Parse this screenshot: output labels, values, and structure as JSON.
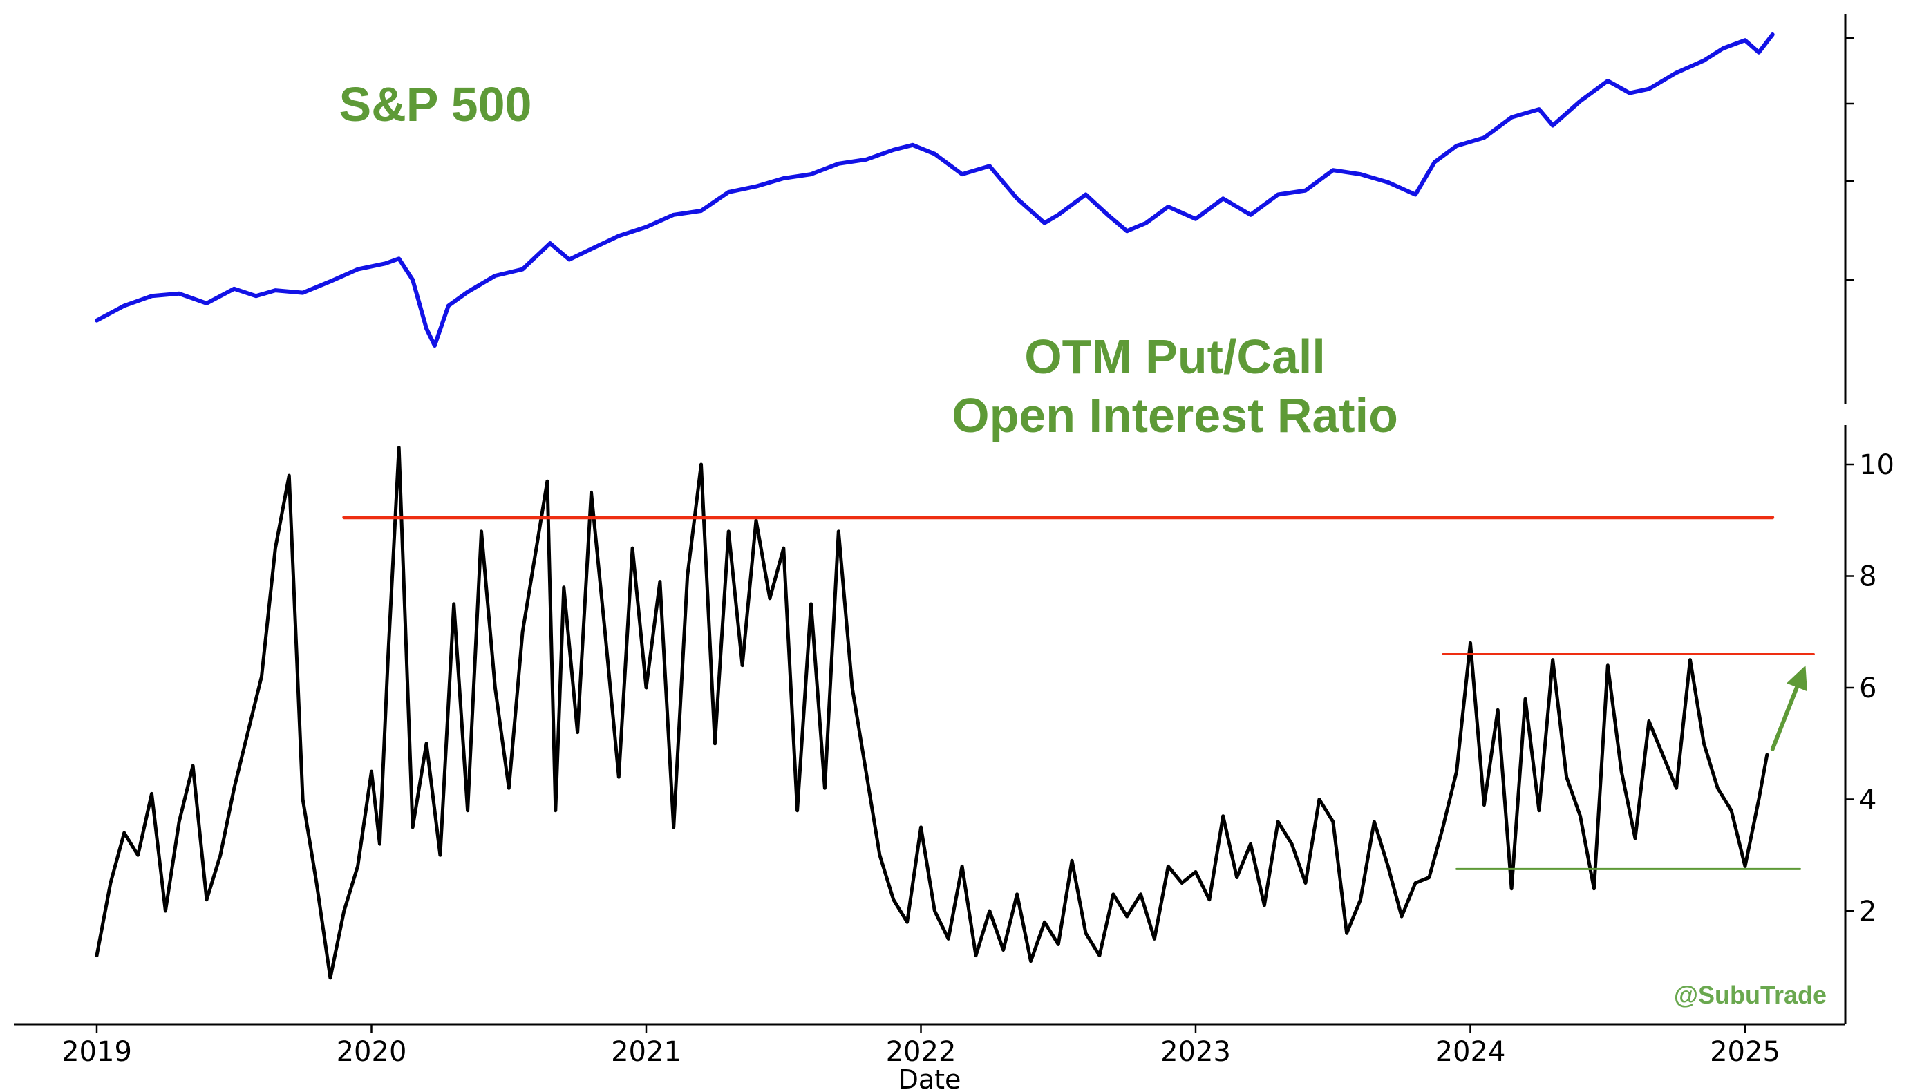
{
  "chart_data": [
    {
      "type": "line",
      "title": "S&P 500",
      "series": [
        {
          "color": "#1212e6",
          "x": [
            2019.0,
            2019.1,
            2019.2,
            2019.3,
            2019.4,
            2019.5,
            2019.58,
            2019.65,
            2019.75,
            2019.85,
            2019.95,
            2020.05,
            2020.1,
            2020.15,
            2020.2,
            2020.23,
            2020.28,
            2020.35,
            2020.45,
            2020.55,
            2020.65,
            2020.72,
            2020.8,
            2020.9,
            2021.0,
            2021.1,
            2021.2,
            2021.3,
            2021.4,
            2021.5,
            2021.6,
            2021.7,
            2021.8,
            2021.9,
            2021.97,
            2022.05,
            2022.15,
            2022.25,
            2022.35,
            2022.45,
            2022.5,
            2022.6,
            2022.68,
            2022.75,
            2022.82,
            2022.9,
            2023.0,
            2023.1,
            2023.2,
            2023.3,
            2023.4,
            2023.5,
            2023.6,
            2023.7,
            2023.8,
            2023.87,
            2023.95,
            2024.05,
            2024.15,
            2024.25,
            2024.3,
            2024.4,
            2024.5,
            2024.58,
            2024.65,
            2024.75,
            2024.85,
            2024.92,
            2025.0,
            2025.05,
            2025.1
          ],
          "y": [
            2600,
            2780,
            2900,
            2930,
            2810,
            2990,
            2900,
            2970,
            2940,
            3080,
            3230,
            3300,
            3360,
            3100,
            2500,
            2290,
            2780,
            2950,
            3150,
            3230,
            3550,
            3350,
            3480,
            3640,
            3750,
            3900,
            3950,
            4180,
            4250,
            4350,
            4400,
            4530,
            4580,
            4700,
            4760,
            4650,
            4400,
            4500,
            4100,
            3800,
            3900,
            4150,
            3900,
            3700,
            3800,
            4000,
            3850,
            4100,
            3900,
            4150,
            4200,
            4450,
            4400,
            4300,
            4150,
            4550,
            4750,
            4850,
            5100,
            5200,
            5000,
            5300,
            5550,
            5400,
            5450,
            5650,
            5800,
            5950,
            6050,
            5900,
            6120
          ]
        }
      ]
    },
    {
      "type": "line",
      "title": "OTM Put/Call\nOpen Interest Ratio",
      "xlabel": "Date",
      "ylabel": "",
      "xticks": [
        "2019",
        "2020",
        "2021",
        "2022",
        "2023",
        "2024",
        "2025"
      ],
      "yticks": [
        "2",
        "4",
        "6",
        "8",
        "10"
      ],
      "ylim": [
        0.35,
        10.8
      ],
      "series": [
        {
          "color": "#000000",
          "x": [
            2019.0,
            2019.05,
            2019.1,
            2019.15,
            2019.2,
            2019.25,
            2019.3,
            2019.35,
            2019.4,
            2019.45,
            2019.5,
            2019.55,
            2019.6,
            2019.65,
            2019.7,
            2019.75,
            2019.8,
            2019.85,
            2019.9,
            2019.95,
            2020.0,
            2020.03,
            2020.06,
            2020.1,
            2020.15,
            2020.2,
            2020.25,
            2020.3,
            2020.35,
            2020.4,
            2020.45,
            2020.5,
            2020.55,
            2020.6,
            2020.64,
            2020.67,
            2020.7,
            2020.75,
            2020.8,
            2020.85,
            2020.9,
            2020.95,
            2021.0,
            2021.05,
            2021.1,
            2021.15,
            2021.2,
            2021.25,
            2021.3,
            2021.35,
            2021.4,
            2021.45,
            2021.5,
            2021.55,
            2021.6,
            2021.65,
            2021.7,
            2021.75,
            2021.8,
            2021.85,
            2021.9,
            2021.95,
            2022.0,
            2022.05,
            2022.1,
            2022.15,
            2022.2,
            2022.25,
            2022.3,
            2022.35,
            2022.4,
            2022.45,
            2022.5,
            2022.55,
            2022.6,
            2022.65,
            2022.7,
            2022.75,
            2022.8,
            2022.85,
            2022.9,
            2022.95,
            2023.0,
            2023.05,
            2023.1,
            2023.15,
            2023.2,
            2023.25,
            2023.3,
            2023.35,
            2023.4,
            2023.45,
            2023.5,
            2023.55,
            2023.6,
            2023.65,
            2023.7,
            2023.75,
            2023.8,
            2023.85,
            2023.9,
            2023.95,
            2024.0,
            2024.05,
            2024.1,
            2024.15,
            2024.2,
            2024.25,
            2024.3,
            2024.35,
            2024.4,
            2024.45,
            2024.5,
            2024.55,
            2024.6,
            2024.65,
            2024.7,
            2024.75,
            2024.8,
            2024.85,
            2024.9,
            2024.95,
            2025.0,
            2025.05,
            2025.08
          ],
          "y": [
            1.2,
            2.5,
            3.4,
            3.0,
            4.1,
            2.0,
            3.6,
            4.6,
            2.2,
            3.0,
            4.2,
            5.2,
            6.2,
            8.5,
            9.8,
            4.0,
            2.5,
            0.8,
            2.0,
            2.8,
            4.5,
            3.2,
            6.5,
            10.3,
            3.5,
            5.0,
            3.0,
            7.5,
            3.8,
            8.8,
            6.0,
            4.2,
            7.0,
            8.5,
            9.7,
            3.8,
            7.8,
            5.2,
            9.5,
            7.0,
            4.4,
            8.5,
            6.0,
            7.9,
            3.5,
            8.0,
            10.0,
            5.0,
            8.8,
            6.4,
            9.0,
            7.6,
            8.5,
            3.8,
            7.5,
            4.2,
            8.8,
            6.0,
            4.5,
            3.0,
            2.2,
            1.8,
            3.5,
            2.0,
            1.5,
            2.8,
            1.2,
            2.0,
            1.3,
            2.3,
            1.1,
            1.8,
            1.4,
            2.9,
            1.6,
            1.2,
            2.3,
            1.9,
            2.3,
            1.5,
            2.8,
            2.5,
            2.7,
            2.2,
            3.7,
            2.6,
            3.2,
            2.1,
            3.6,
            3.2,
            2.5,
            4.0,
            3.6,
            1.6,
            2.2,
            3.6,
            2.8,
            1.9,
            2.5,
            2.6,
            3.5,
            4.5,
            6.8,
            3.9,
            5.6,
            2.4,
            5.8,
            3.8,
            6.5,
            4.4,
            3.7,
            2.4,
            6.4,
            4.5,
            3.3,
            5.4,
            4.8,
            4.2,
            6.5,
            5.0,
            4.2,
            3.8,
            2.8,
            4.0,
            4.8
          ]
        },
        {
          "color": "#ee2e12",
          "x": [
            2019.9,
            2025.1
          ],
          "y": [
            9.05,
            9.05
          ]
        },
        {
          "color": "#ee2e12",
          "x": [
            2023.9,
            2025.25
          ],
          "y": [
            6.6,
            6.6
          ]
        },
        {
          "color": "#5e9a37",
          "x": [
            2023.95,
            2025.2
          ],
          "y": [
            2.75,
            2.75
          ]
        }
      ],
      "annotations": [
        {
          "type": "arrow",
          "color": "#5e9a37",
          "from": [
            2025.1,
            4.9
          ],
          "to": [
            2025.22,
            6.4
          ]
        }
      ]
    }
  ],
  "credit": "@SubuTrade"
}
